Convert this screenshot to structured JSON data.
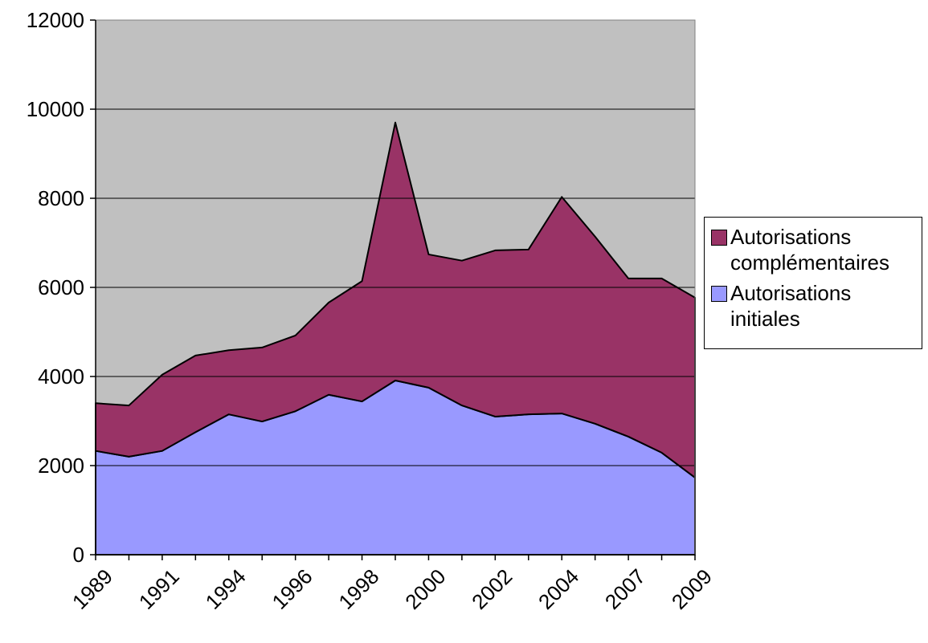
{
  "chart_data": {
    "type": "stacked_area",
    "categories": [
      "1989",
      null,
      "1991",
      null,
      "1994",
      null,
      "1996",
      null,
      "1998",
      null,
      "2000",
      null,
      "2002",
      null,
      "2004",
      null,
      "2007",
      null,
      "2009"
    ],
    "series": [
      {
        "name": "Autorisations initiales",
        "color": "#9999ff",
        "values": [
          2330,
          2200,
          2330,
          2750,
          3150,
          2990,
          3220,
          3590,
          3440,
          3910,
          3750,
          3350,
          3100,
          3150,
          3170,
          2940,
          2650,
          2290,
          1730
        ]
      },
      {
        "name": "Autorisations complémentaires",
        "color": "#993366",
        "values": [
          1070,
          1150,
          1710,
          1720,
          1440,
          1660,
          1700,
          2070,
          2700,
          5790,
          2990,
          3250,
          3730,
          3700,
          4860,
          4200,
          3550,
          3910,
          4040
        ]
      }
    ],
    "ylim": [
      0,
      12000
    ],
    "yticks": [
      0,
      2000,
      4000,
      6000,
      8000,
      10000,
      12000
    ],
    "grid": true,
    "legend": "right",
    "plot_background": "#c0c0c0"
  }
}
